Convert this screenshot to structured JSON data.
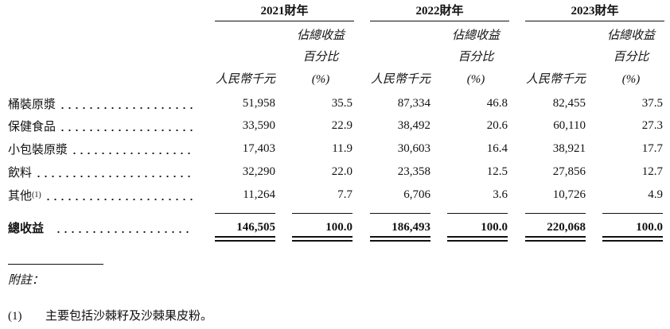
{
  "table": {
    "years": [
      "2021財年",
      "2022財年",
      "2023財年"
    ],
    "subheader": {
      "pct_line1": "佔總收益",
      "pct_line2": "百分比",
      "amount_unit": "人民幣千元",
      "pct_unit": "(%)"
    },
    "rows": [
      {
        "label": "桶裝原漿",
        "cells": [
          "51,958",
          "35.5",
          "87,334",
          "46.8",
          "82,455",
          "37.5"
        ]
      },
      {
        "label": "保健食品",
        "cells": [
          "33,590",
          "22.9",
          "38,492",
          "20.6",
          "60,110",
          "27.3"
        ]
      },
      {
        "label": "小包裝原漿",
        "cells": [
          "17,403",
          "11.9",
          "30,603",
          "16.4",
          "38,921",
          "17.7"
        ]
      },
      {
        "label": "飲料",
        "cells": [
          "32,290",
          "22.0",
          "23,358",
          "12.5",
          "27,856",
          "12.7"
        ]
      },
      {
        "label": "其他",
        "note_ref": "(1)",
        "cells": [
          "11,264",
          "7.7",
          "6,706",
          "3.6",
          "10,726",
          "4.9"
        ]
      }
    ],
    "total": {
      "label": "總收益",
      "cells": [
        "146,505",
        "100.0",
        "186,493",
        "100.0",
        "220,068",
        "100.0"
      ]
    }
  },
  "notes": {
    "heading": "附註：",
    "items": [
      {
        "marker": "(1)",
        "text": "主要包括沙棘籽及沙棘果皮粉。"
      }
    ]
  }
}
